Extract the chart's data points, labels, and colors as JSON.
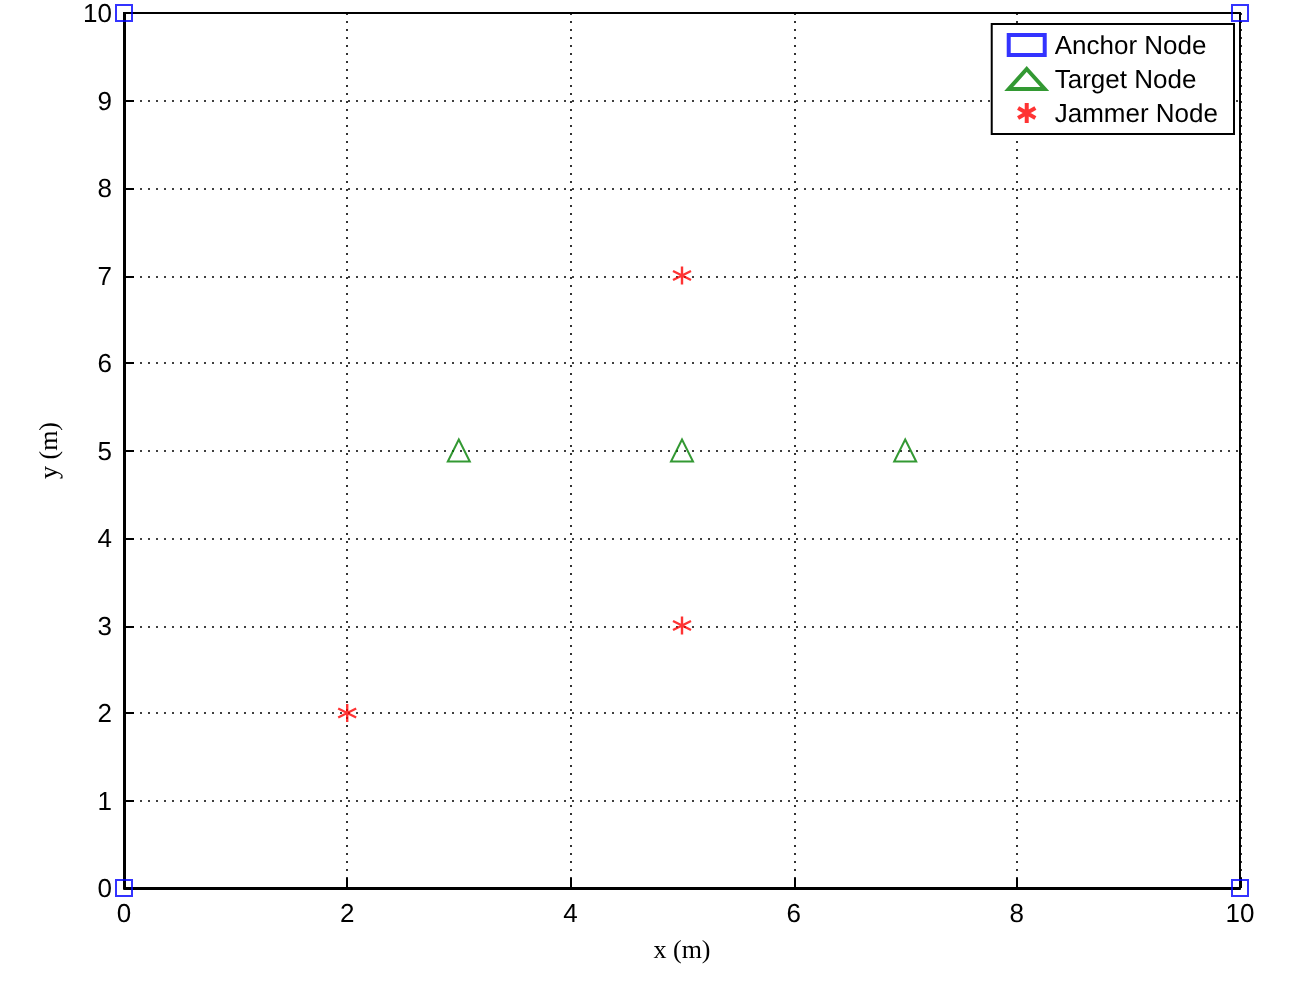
{
  "chart_data": {
    "type": "scatter",
    "xlabel": "x (m)",
    "ylabel": "y (m)",
    "xlim": [
      0,
      10
    ],
    "ylim": [
      0,
      10
    ],
    "xticks": [
      0,
      2,
      4,
      6,
      8,
      10
    ],
    "yticks": [
      0,
      1,
      2,
      3,
      4,
      5,
      6,
      7,
      8,
      9,
      10
    ],
    "grid": true,
    "legend": "top right",
    "series": [
      {
        "name": "Anchor Node",
        "color": "#0000ff",
        "marker": "square",
        "x": [
          0,
          0,
          10,
          10
        ],
        "values": [
          0,
          10,
          10,
          0
        ]
      },
      {
        "name": "Target Node",
        "color": "#008000",
        "marker": "triangle",
        "x": [
          3,
          5,
          7
        ],
        "values": [
          5,
          5,
          5
        ]
      },
      {
        "name": "Jammer Node",
        "color": "#ff0000",
        "marker": "cross",
        "x": [
          5,
          5,
          2
        ],
        "values": [
          7,
          3,
          2
        ]
      }
    ]
  }
}
